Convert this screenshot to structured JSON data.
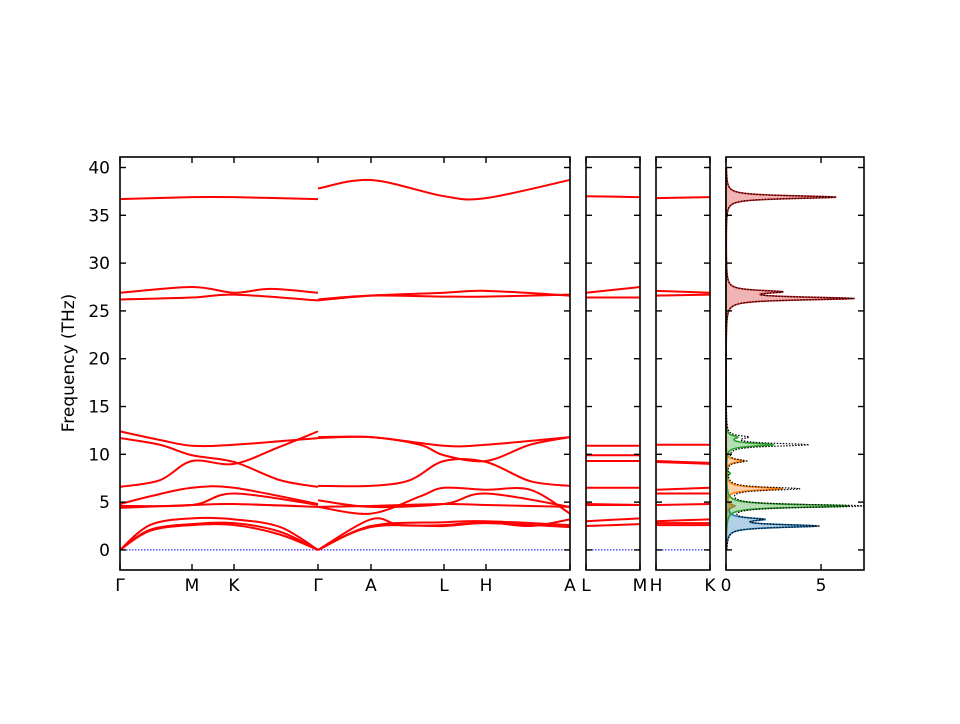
{
  "chart_data": {
    "type": "line",
    "ylabel": "Frequency (THz)",
    "ylim": [
      -2.1,
      41.1
    ],
    "yticks": [
      "0",
      "5",
      "10",
      "15",
      "20",
      "25",
      "30",
      "35",
      "40"
    ],
    "ytick_values": [
      0,
      5,
      10,
      15,
      20,
      25,
      30,
      35,
      40
    ],
    "band_color": "#ff0000",
    "zero_line_color": "#0000ff",
    "panels": [
      {
        "xrange": [
          0,
          4.5
        ],
        "ticks": [
          {
            "q": 0,
            "label": "Γ"
          },
          {
            "q": 0.72,
            "label": "M"
          },
          {
            "q": 1.14,
            "label": "K"
          },
          {
            "q": 1.98,
            "label": "Γ"
          },
          {
            "q": 2.51,
            "label": "A"
          },
          {
            "q": 3.24,
            "label": "L"
          },
          {
            "q": 3.66,
            "label": "H"
          },
          {
            "q": 4.5,
            "label": "A"
          }
        ],
        "bands": [
          [
            [
              0,
              0
            ],
            [
              0.3,
              2.0
            ],
            [
              0.72,
              2.6
            ],
            [
              1.14,
              2.6
            ],
            [
              1.6,
              1.6
            ],
            [
              1.98,
              0
            ]
          ],
          [
            [
              0,
              0
            ],
            [
              0.3,
              2.1
            ],
            [
              0.72,
              2.7
            ],
            [
              1.14,
              2.8
            ],
            [
              1.6,
              1.9
            ],
            [
              1.98,
              0
            ]
          ],
          [
            [
              0,
              0
            ],
            [
              0.3,
              2.6
            ],
            [
              0.72,
              3.3
            ],
            [
              1.14,
              3.2
            ],
            [
              1.6,
              2.4
            ],
            [
              1.98,
              0
            ]
          ],
          [
            [
              0,
              4.4
            ],
            [
              0.72,
              4.7
            ],
            [
              1.14,
              4.8
            ],
            [
              1.98,
              4.5
            ]
          ],
          [
            [
              0,
              4.6
            ],
            [
              0.72,
              4.7
            ],
            [
              1.14,
              5.9
            ],
            [
              1.98,
              4.7
            ]
          ],
          [
            [
              0,
              4.8
            ],
            [
              0.3,
              5.6
            ],
            [
              0.72,
              6.5
            ],
            [
              1.14,
              6.5
            ],
            [
              1.98,
              4.8
            ]
          ],
          [
            [
              0,
              6.6
            ],
            [
              0.4,
              7.3
            ],
            [
              0.72,
              9.3
            ],
            [
              1.14,
              9.0
            ],
            [
              1.6,
              10.8
            ],
            [
              1.98,
              12.4
            ]
          ],
          [
            [
              0,
              11.7
            ],
            [
              0.4,
              11.0
            ],
            [
              0.72,
              9.9
            ],
            [
              1.14,
              9.2
            ],
            [
              1.6,
              7.3
            ],
            [
              1.98,
              6.6
            ]
          ],
          [
            [
              0,
              12.4
            ],
            [
              0.4,
              11.5
            ],
            [
              0.72,
              10.9
            ],
            [
              1.14,
              11.0
            ],
            [
              1.98,
              11.7
            ]
          ],
          [
            [
              0,
              26.2
            ],
            [
              0.72,
              26.4
            ],
            [
              1.14,
              26.7
            ],
            [
              1.98,
              26.1
            ]
          ],
          [
            [
              0,
              26.9
            ],
            [
              0.72,
              27.5
            ],
            [
              1.14,
              26.9
            ],
            [
              1.5,
              27.3
            ],
            [
              1.98,
              26.9
            ]
          ],
          [
            [
              0,
              36.7
            ],
            [
              0.72,
              36.9
            ],
            [
              1.14,
              36.9
            ],
            [
              1.98,
              36.7
            ]
          ],
          [
            [
              1.98,
              0
            ],
            [
              2.51,
              2.4
            ],
            [
              3.24,
              2.5
            ],
            [
              3.66,
              2.8
            ],
            [
              4.5,
              2.4
            ]
          ],
          [
            [
              1.98,
              0
            ],
            [
              2.51,
              2.5
            ],
            [
              3.24,
              2.9
            ],
            [
              3.66,
              3.0
            ],
            [
              4.5,
              2.6
            ]
          ],
          [
            [
              1.98,
              0
            ],
            [
              2.51,
              3.2
            ],
            [
              2.8,
              2.6
            ],
            [
              3.24,
              2.6
            ],
            [
              3.66,
              2.9
            ],
            [
              4.1,
              2.5
            ],
            [
              4.5,
              3.2
            ]
          ],
          [
            [
              1.98,
              4.5
            ],
            [
              2.51,
              3.8
            ],
            [
              3.0,
              5.6
            ],
            [
              3.24,
              6.5
            ],
            [
              3.66,
              6.3
            ],
            [
              4.1,
              6.3
            ],
            [
              4.5,
              3.8
            ]
          ],
          [
            [
              1.98,
              5.2
            ],
            [
              2.51,
              4.5
            ],
            [
              3.24,
              4.8
            ],
            [
              3.66,
              5.9
            ],
            [
              4.5,
              4.5
            ]
          ],
          [
            [
              1.98,
              4.5
            ],
            [
              2.51,
              4.6
            ],
            [
              3.24,
              4.8
            ],
            [
              3.66,
              4.7
            ],
            [
              4.5,
              4.5
            ]
          ],
          [
            [
              1.98,
              6.7
            ],
            [
              2.51,
              6.7
            ],
            [
              2.9,
              7.3
            ],
            [
              3.24,
              9.3
            ],
            [
              3.66,
              9.2
            ],
            [
              4.1,
              7.2
            ],
            [
              4.5,
              6.7
            ]
          ],
          [
            [
              1.98,
              11.8
            ],
            [
              2.51,
              11.8
            ],
            [
              3.0,
              11.0
            ],
            [
              3.24,
              9.9
            ],
            [
              3.66,
              9.3
            ],
            [
              4.1,
              11.0
            ],
            [
              4.5,
              11.8
            ]
          ],
          [
            [
              1.98,
              11.7
            ],
            [
              2.51,
              11.8
            ],
            [
              3.24,
              10.9
            ],
            [
              3.66,
              11.0
            ],
            [
              4.5,
              11.8
            ]
          ],
          [
            [
              1.98,
              26.1
            ],
            [
              2.51,
              26.6
            ],
            [
              3.24,
              26.9
            ],
            [
              3.66,
              27.1
            ],
            [
              4.5,
              26.6
            ]
          ],
          [
            [
              1.98,
              26.2
            ],
            [
              2.51,
              26.6
            ],
            [
              3.24,
              26.5
            ],
            [
              3.66,
              26.5
            ],
            [
              4.5,
              26.7
            ]
          ],
          [
            [
              1.98,
              37.8
            ],
            [
              2.51,
              38.7
            ],
            [
              3.24,
              37.0
            ],
            [
              3.66,
              36.8
            ],
            [
              4.5,
              38.7
            ]
          ]
        ]
      },
      {
        "xrange": [
          0,
          0.54
        ],
        "ticks": [
          {
            "q": 0,
            "label": "L"
          },
          {
            "q": 0.54,
            "label": "M"
          }
        ],
        "bands": [
          [
            [
              0,
              37.0
            ],
            [
              0.54,
              36.9
            ]
          ],
          [
            [
              0,
              26.9
            ],
            [
              0.54,
              27.5
            ]
          ],
          [
            [
              0,
              26.4
            ],
            [
              0.54,
              26.4
            ]
          ],
          [
            [
              0,
              10.9
            ],
            [
              0.54,
              10.9
            ]
          ],
          [
            [
              0,
              9.9
            ],
            [
              0.54,
              9.9
            ]
          ],
          [
            [
              0,
              9.3
            ],
            [
              0.54,
              9.3
            ]
          ],
          [
            [
              0,
              6.5
            ],
            [
              0.54,
              6.5
            ]
          ],
          [
            [
              0,
              4.8
            ],
            [
              0.54,
              4.7
            ]
          ],
          [
            [
              0,
              4.7
            ],
            [
              0.54,
              4.7
            ]
          ],
          [
            [
              0,
              3.0
            ],
            [
              0.54,
              3.3
            ]
          ],
          [
            [
              0,
              2.5
            ],
            [
              0.54,
              2.7
            ]
          ]
        ]
      },
      {
        "xrange": [
          0,
          0.54
        ],
        "ticks": [
          {
            "q": 0,
            "label": "H"
          },
          {
            "q": 0.54,
            "label": "K"
          }
        ],
        "bands": [
          [
            [
              0,
              36.8
            ],
            [
              0.54,
              36.9
            ]
          ],
          [
            [
              0,
              27.1
            ],
            [
              0.54,
              26.9
            ]
          ],
          [
            [
              0,
              26.6
            ],
            [
              0.54,
              26.7
            ]
          ],
          [
            [
              0,
              11.0
            ],
            [
              0.54,
              11.0
            ]
          ],
          [
            [
              0,
              9.2
            ],
            [
              0.54,
              9.0
            ]
          ],
          [
            [
              0,
              9.3
            ],
            [
              0.54,
              9.1
            ]
          ],
          [
            [
              0,
              6.3
            ],
            [
              0.54,
              6.5
            ]
          ],
          [
            [
              0,
              5.9
            ],
            [
              0.54,
              5.9
            ]
          ],
          [
            [
              0,
              4.7
            ],
            [
              0.54,
              4.8
            ]
          ],
          [
            [
              0,
              3.0
            ],
            [
              0.54,
              3.2
            ]
          ],
          [
            [
              0,
              2.8
            ],
            [
              0.54,
              2.8
            ]
          ],
          [
            [
              0,
              2.6
            ],
            [
              0.54,
              2.6
            ]
          ]
        ]
      }
    ],
    "dos": {
      "xlim": [
        0,
        7.26
      ],
      "xticks": [
        "0",
        "5"
      ],
      "xtick_values": [
        0,
        5
      ],
      "total": {
        "color": "#000000",
        "peaks": [
          [
            2.5,
            4.8
          ],
          [
            3.2,
            1.5
          ],
          [
            4.6,
            7.2
          ],
          [
            6.4,
            3.8
          ],
          [
            9.3,
            1.0
          ],
          [
            11.0,
            4.3
          ],
          [
            11.8,
            1.0
          ],
          [
            26.3,
            6.6
          ],
          [
            27.0,
            2.6
          ],
          [
            36.9,
            5.8
          ]
        ]
      },
      "partials": [
        {
          "color": "#1f77b4",
          "peaks": [
            [
              2.5,
              4.7
            ],
            [
              3.2,
              1.8
            ],
            [
              4.6,
              0.4
            ]
          ]
        },
        {
          "color": "#ff7f0e",
          "peaks": [
            [
              6.4,
              3.0
            ],
            [
              9.3,
              0.9
            ],
            [
              4.6,
              0.4
            ]
          ]
        },
        {
          "color": "#2ca02c",
          "peaks": [
            [
              4.6,
              6.5
            ],
            [
              11.0,
              2.5
            ],
            [
              11.8,
              0.5
            ],
            [
              8.0,
              0.2
            ]
          ]
        },
        {
          "color": "#d62728",
          "peaks": [
            [
              26.3,
              6.6
            ],
            [
              27.0,
              2.6
            ],
            [
              36.9,
              5.8
            ]
          ]
        }
      ]
    }
  }
}
